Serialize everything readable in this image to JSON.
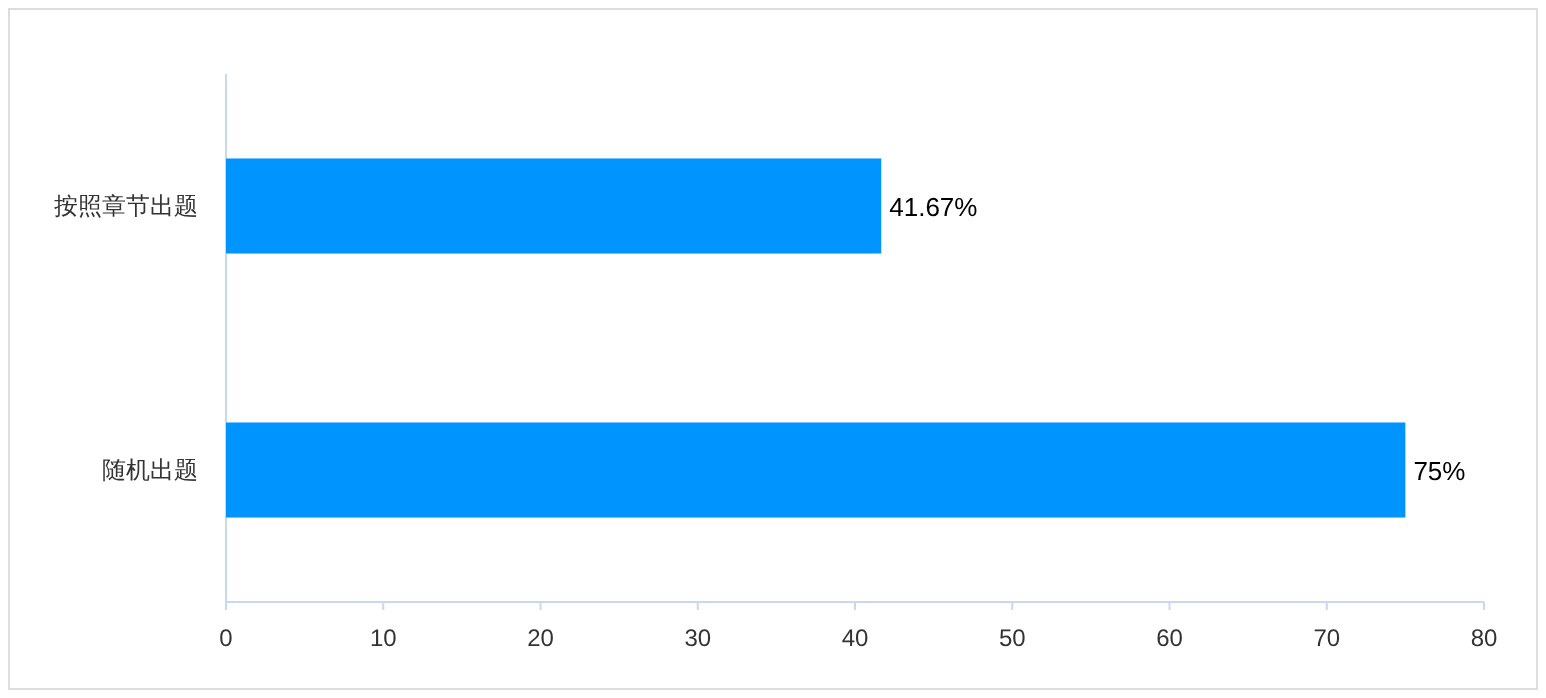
{
  "chart_data": {
    "type": "bar",
    "orientation": "horizontal",
    "categories": [
      "按照章节出题",
      "随机出题"
    ],
    "values": [
      41.67,
      75
    ],
    "value_labels": [
      "41.67%",
      "75%"
    ],
    "color": "#0094ff",
    "xlim": [
      0,
      80
    ],
    "xticks": [
      0,
      10,
      20,
      30,
      40,
      50,
      60,
      70,
      80
    ]
  }
}
